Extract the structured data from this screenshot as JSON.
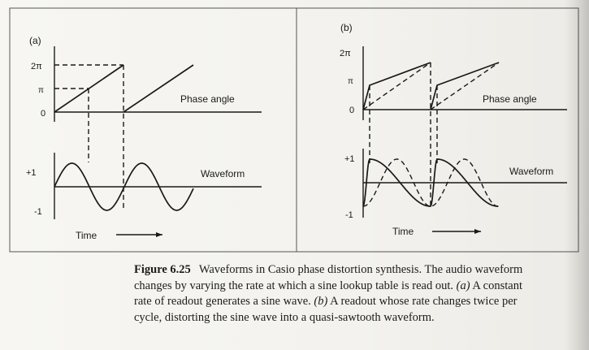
{
  "figure": {
    "panel_a": {
      "label": "(a)",
      "y_ticks": [
        "2π",
        "π",
        "0"
      ],
      "phase_label": "Phase angle",
      "wave_ticks": [
        "+1",
        "-1"
      ],
      "wave_label": "Waveform",
      "time_label": "Time"
    },
    "panel_b": {
      "label": "(b)",
      "y_ticks": [
        "2π",
        "π",
        "0"
      ],
      "phase_label": "Phase angle",
      "wave_ticks": [
        "+1",
        "-1"
      ],
      "wave_label": "Waveform",
      "time_label": "Time"
    }
  },
  "caption": {
    "figure_label": "Figure 6.25",
    "line1": "Waveforms in Casio phase distortion synthesis. The audio waveform",
    "line2": "changes by varying the rate at which a sine lookup table is read out. ",
    "line2_a": "(a)",
    "line2_rest": " A constant",
    "line3_pre": "rate of readout generates a sine wave. ",
    "line3_b": "(b)",
    "line3_rest": " A readout whose rate changes twice per",
    "line4": "cycle, distorting the sine wave into a quasi-sawtooth waveform."
  }
}
